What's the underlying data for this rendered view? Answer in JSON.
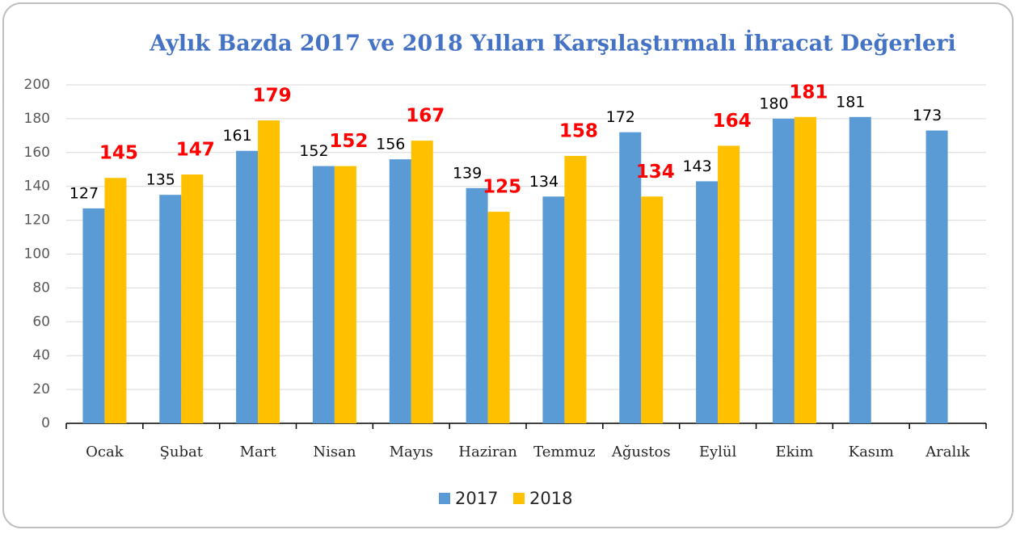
{
  "chart_data": {
    "type": "bar",
    "title": "Aylık Bazda  2017 ve 2018 Yılları Karşılaştırmalı İhracat Değerleri",
    "categories": [
      "Ocak",
      "Şubat",
      "Mart",
      "Nisan",
      "Mayıs",
      "Haziran",
      "Temmuz",
      "Ağustos",
      "Eylül",
      "Ekim",
      "Kasım",
      "Aralık"
    ],
    "series": [
      {
        "name": "2017",
        "color": "#5b9bd5",
        "values": [
          127,
          135,
          161,
          152,
          156,
          139,
          134,
          172,
          143,
          180,
          181,
          173
        ]
      },
      {
        "name": "2018",
        "color": "#ffc000",
        "values": [
          145,
          147,
          179,
          152,
          167,
          125,
          158,
          134,
          164,
          181,
          null,
          null
        ]
      }
    ],
    "ylim": [
      0,
      200
    ],
    "yticks": [
      0,
      20,
      40,
      60,
      80,
      100,
      120,
      140,
      160,
      180,
      200
    ],
    "grid": true,
    "legend": "bottom"
  }
}
